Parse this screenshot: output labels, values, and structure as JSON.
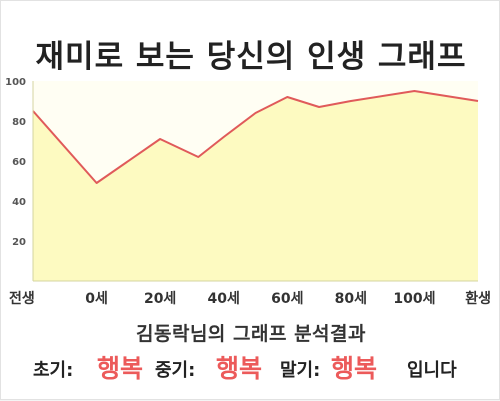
{
  "title": "재미로 보는 당신의 인생 그래프",
  "chart_data": {
    "type": "area",
    "title": "재미로 보는 당신의 인생 그래프",
    "x": [
      -1,
      0,
      1,
      1.6,
      2,
      2.5,
      3,
      3.5,
      4,
      5,
      6
    ],
    "values": [
      85,
      49,
      71,
      62,
      72,
      84,
      92,
      87,
      90,
      95,
      90
    ],
    "x_tick_labels": [
      "전생",
      "0세",
      "20세",
      "40세",
      "60세",
      "80세",
      "100세",
      "환생"
    ],
    "y_ticks": [
      20,
      40,
      60,
      80,
      100
    ],
    "ylim": [
      0,
      100
    ],
    "grid": false,
    "colors": {
      "line": "#e05a5a",
      "fill": "#fdfac1",
      "plot_bg": "#fffef3",
      "axis": "#d4d4a0"
    }
  },
  "subtitle": "김동락님의 그래프 분석결과",
  "summary": {
    "early_label": "초기:",
    "early_value": "행복",
    "mid_label": "중기:",
    "mid_value": "행복",
    "late_label": "말기:",
    "late_value": "행복",
    "ending": "입니다"
  }
}
